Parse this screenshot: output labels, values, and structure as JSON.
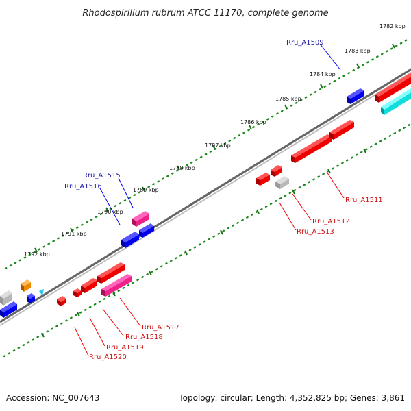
{
  "title": "Rhodospirillum rubrum ATCC 11170, complete genome",
  "kbp_labels": [
    "1782 kbp",
    "1783 kbp",
    "1784 kbp",
    "1785 kbp",
    "1786 kbp",
    "1787 kbp",
    "1788 kbp",
    "1789 kbp",
    "1790 kbp",
    "1791 kbp",
    "1792 kbp"
  ],
  "gene_labels_forward": [
    "Rru_A1509",
    "Rru_A1515",
    "Rru_A1516"
  ],
  "gene_labels_reverse": [
    "Rru_A1511",
    "Rru_A1512",
    "Rru_A1513",
    "Rru_A1517",
    "Rru_A1518",
    "Rru_A1519",
    "Rru_A1520"
  ],
  "colors": {
    "forward_gene": "#0000ee",
    "reverse_gene": "#ee0000",
    "pink_gene": "#ee2288",
    "gray_gene": "#b8b8b8",
    "orange_gene": "#ee8800",
    "cyan_gene": "#11dddd",
    "scale_ticks": "#1a8a1a",
    "backbone": "#777777"
  },
  "footer": {
    "accession": "Accession: NC_007643",
    "summary": "Topology: circular; Length: 4,352,825 bp; Genes: 3,861"
  }
}
